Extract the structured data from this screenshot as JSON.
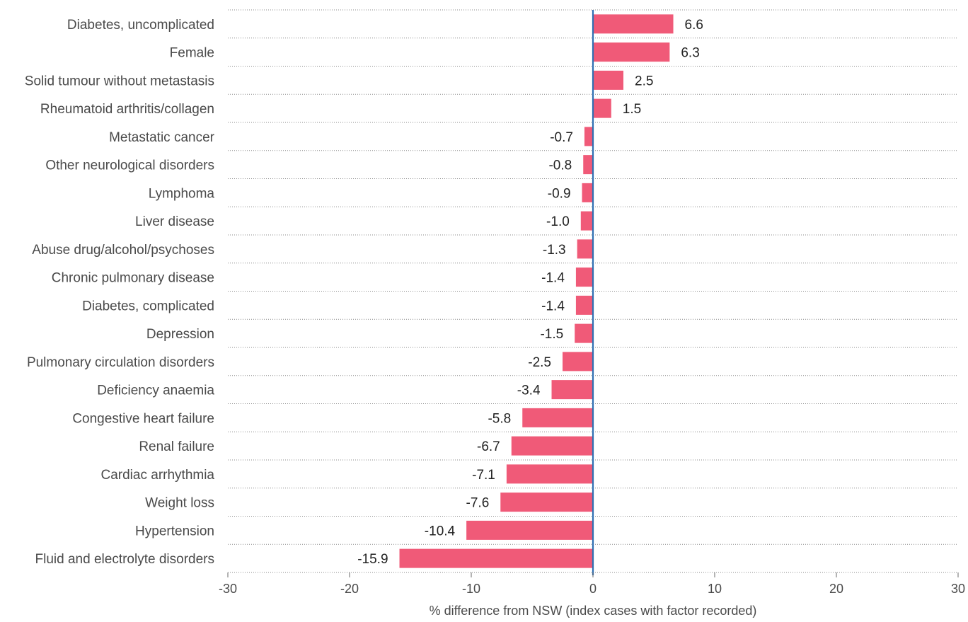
{
  "chart_data": {
    "type": "bar",
    "orientation": "horizontal",
    "categories": [
      "Diabetes, uncomplicated",
      "Female",
      "Solid tumour without metastasis",
      "Rheumatoid arthritis/collagen",
      "Metastatic cancer",
      "Other neurological disorders",
      "Lymphoma",
      "Liver disease",
      "Abuse drug/alcohol/psychoses",
      "Chronic pulmonary disease",
      "Diabetes, complicated",
      "Depression",
      "Pulmonary circulation disorders",
      "Deficiency anaemia",
      "Congestive heart failure",
      "Renal failure",
      "Cardiac arrhythmia",
      "Weight loss",
      "Hypertension",
      "Fluid and electrolyte disorders"
    ],
    "values": [
      6.6,
      6.3,
      2.5,
      1.5,
      -0.7,
      -0.8,
      -0.9,
      -1.0,
      -1.3,
      -1.4,
      -1.4,
      -1.5,
      -2.5,
      -3.4,
      -5.8,
      -6.7,
      -7.1,
      -7.6,
      -10.4,
      -15.9
    ],
    "value_labels": [
      "6.6",
      "6.3",
      "2.5",
      "1.5",
      "-0.7",
      "-0.8",
      "-0.9",
      "-1.0",
      "-1.3",
      "-1.4",
      "-1.4",
      "-1.5",
      "-2.5",
      "-3.4",
      "-5.8",
      "-6.7",
      "-7.1",
      "-7.6",
      "-10.4",
      "-15.9"
    ],
    "xlabel": "% difference from NSW (index cases with factor recorded)",
    "xlim": [
      -30,
      30
    ],
    "xticks": [
      -30,
      -20,
      -10,
      0,
      10,
      20,
      30
    ],
    "xtick_labels": [
      "-30",
      "-20",
      "-10",
      "0",
      "10",
      "20",
      "30"
    ],
    "bar_color": "#f05a78",
    "zero_line_color": "#2f6fb2",
    "grid": "dotted horizontal separators"
  }
}
